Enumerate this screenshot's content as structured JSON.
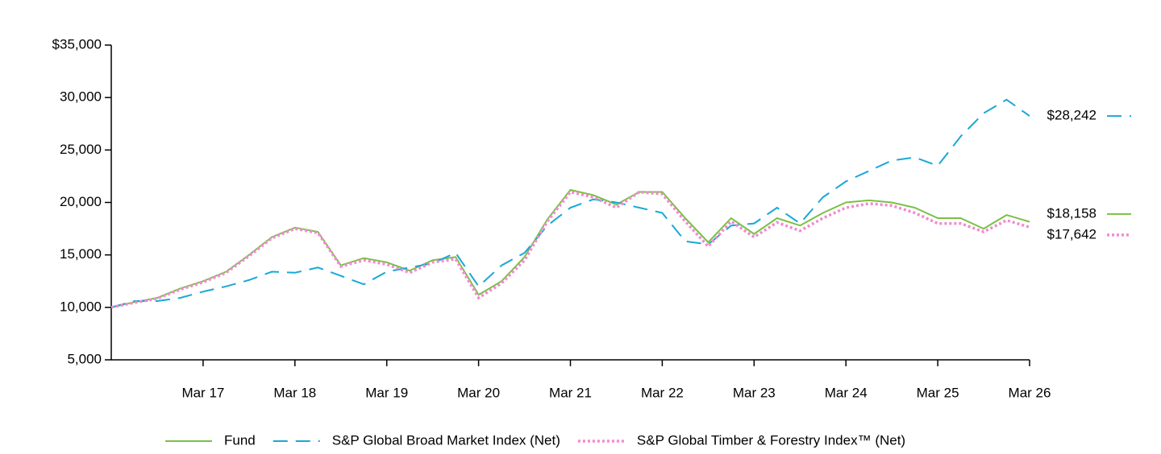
{
  "chart_data": {
    "type": "line",
    "categories": [
      null,
      null,
      null,
      null,
      "Mar 17",
      null,
      null,
      null,
      "Mar 18",
      null,
      null,
      null,
      "Mar 19",
      null,
      null,
      null,
      "Mar 20",
      null,
      null,
      null,
      "Mar 21",
      null,
      null,
      null,
      "Mar 22",
      null,
      null,
      null,
      "Mar 23",
      null,
      null,
      null,
      "Mar 24",
      null,
      null,
      null,
      "Mar 25",
      null,
      null,
      null,
      "Mar 26"
    ],
    "series": [
      {
        "name": "Fund",
        "color": "#7ac143",
        "style": "solid",
        "values": [
          10000,
          10500,
          10900,
          11800,
          12500,
          13400,
          15000,
          16700,
          17600,
          17200,
          14000,
          14700,
          14300,
          13500,
          14500,
          14800,
          11200,
          12500,
          14800,
          18400,
          21200,
          20700,
          19800,
          21000,
          21000,
          18500,
          16200,
          18500,
          17000,
          18500,
          17800,
          19000,
          20000,
          20200,
          20000,
          19500,
          18500,
          18500,
          17500,
          18800,
          18158
        ],
        "value_labels": [
          null,
          null,
          null,
          null,
          null,
          null,
          null,
          null,
          null,
          null,
          null,
          null,
          null,
          null,
          null,
          null,
          null,
          null,
          null,
          null,
          null,
          null,
          null,
          null,
          null,
          null,
          null,
          null,
          null,
          null,
          null,
          null,
          null,
          null,
          null,
          null,
          null,
          null,
          null,
          null,
          "$18,158"
        ]
      },
      {
        "name": "S&P Global Broad Market Index (Net)",
        "color": "#1ba7d8",
        "style": "dashed",
        "values": [
          10000,
          10600,
          10600,
          10900,
          11500,
          12000,
          12600,
          13400,
          13300,
          13800,
          13000,
          12200,
          13400,
          13800,
          14200,
          15200,
          12000,
          14000,
          15200,
          17800,
          19500,
          20300,
          20000,
          19500,
          19000,
          16300,
          16000,
          17800,
          18000,
          19500,
          18000,
          20500,
          22000,
          23000,
          24000,
          24300,
          23500,
          26300,
          28500,
          29800,
          28242
        ],
        "value_labels": [
          null,
          null,
          null,
          null,
          null,
          null,
          null,
          null,
          null,
          null,
          null,
          null,
          null,
          null,
          null,
          null,
          null,
          null,
          null,
          null,
          null,
          null,
          null,
          null,
          null,
          null,
          null,
          null,
          null,
          null,
          null,
          null,
          null,
          null,
          null,
          null,
          null,
          null,
          null,
          null,
          "$28,242"
        ]
      },
      {
        "name": "S&P Global Timber & Forestry Index™ (Net)",
        "color": "#f28ad1",
        "style": "dotted",
        "values": [
          10000,
          10450,
          10850,
          11700,
          12400,
          13300,
          14900,
          16600,
          17500,
          17100,
          13900,
          14500,
          14100,
          13300,
          14300,
          14600,
          10900,
          12300,
          14500,
          18200,
          21000,
          20500,
          19500,
          21000,
          20800,
          18200,
          15800,
          18200,
          16700,
          18100,
          17300,
          18500,
          19500,
          19900,
          19700,
          19000,
          18000,
          18000,
          17200,
          18300,
          17642
        ],
        "value_labels": [
          null,
          null,
          null,
          null,
          null,
          null,
          null,
          null,
          null,
          null,
          null,
          null,
          null,
          null,
          null,
          null,
          null,
          null,
          null,
          null,
          null,
          null,
          null,
          null,
          null,
          null,
          null,
          null,
          null,
          null,
          null,
          null,
          null,
          null,
          null,
          null,
          null,
          null,
          null,
          null,
          "$17,642"
        ]
      }
    ],
    "ylim": [
      5000,
      35000
    ],
    "yticks": [
      {
        "value": 5000,
        "label": "5,000"
      },
      {
        "value": 10000,
        "label": "10,000"
      },
      {
        "value": 15000,
        "label": "15,000"
      },
      {
        "value": 20000,
        "label": "20,000"
      },
      {
        "value": 25000,
        "label": "25,000"
      },
      {
        "value": 30000,
        "label": "30,000"
      },
      {
        "value": 35000,
        "label": "$35,000"
      }
    ],
    "grid": false,
    "legend": "bottom"
  }
}
